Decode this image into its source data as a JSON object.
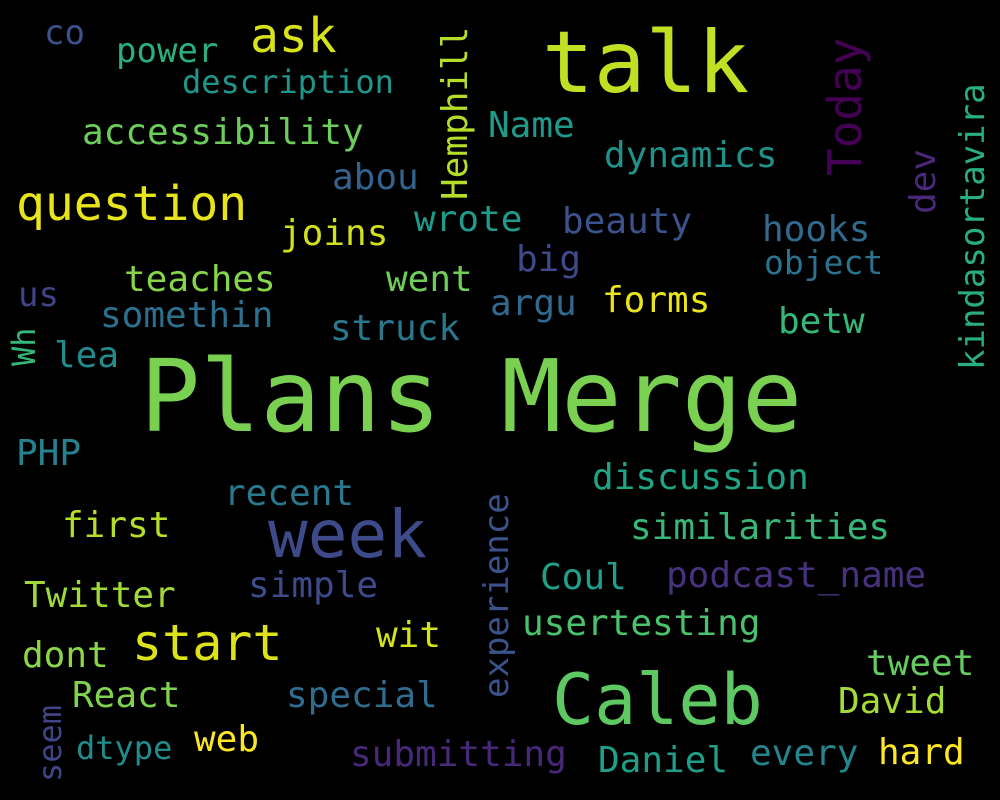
{
  "background_color": "#000000",
  "words": [
    {
      "text": "Plans Merge",
      "color": "#7ad151"
    },
    {
      "text": "talk",
      "color": "#c2df23"
    },
    {
      "text": "Caleb",
      "color": "#5ec962"
    },
    {
      "text": "week",
      "color": "#3e4a89"
    },
    {
      "text": "question",
      "color": "#e7e419"
    },
    {
      "text": "start",
      "color": "#dde318"
    },
    {
      "text": "ask",
      "color": "#d8e219"
    },
    {
      "text": "Today",
      "color": "#440154"
    },
    {
      "text": "power",
      "color": "#2ab07f"
    },
    {
      "text": "co",
      "color": "#3b528b"
    },
    {
      "text": "description",
      "color": "#1f968b"
    },
    {
      "text": "accessibility",
      "color": "#6ccd5a"
    },
    {
      "text": "Hemphill",
      "color": "#b5de2b"
    },
    {
      "text": "Name",
      "color": "#1f9a8a"
    },
    {
      "text": "dynamics",
      "color": "#21918c"
    },
    {
      "text": "abou",
      "color": "#33638d"
    },
    {
      "text": "joins",
      "color": "#d0e11c"
    },
    {
      "text": "wrote",
      "color": "#1e9b8a"
    },
    {
      "text": "beauty",
      "color": "#3b528b"
    },
    {
      "text": "hooks",
      "color": "#306a8e"
    },
    {
      "text": "object",
      "color": "#2c728e"
    },
    {
      "text": "dev",
      "color": "#482878"
    },
    {
      "text": "kindasortavira",
      "color": "#29af7f"
    },
    {
      "text": "big",
      "color": "#3e4989"
    },
    {
      "text": "teaches",
      "color": "#86d549"
    },
    {
      "text": "went",
      "color": "#6ece58"
    },
    {
      "text": "us",
      "color": "#414487"
    },
    {
      "text": "somethin",
      "color": "#2d708e"
    },
    {
      "text": "argu",
      "color": "#31688e"
    },
    {
      "text": "forms",
      "color": "#eae51a"
    },
    {
      "text": "struck",
      "color": "#2a788e"
    },
    {
      "text": "betw",
      "color": "#35b779"
    },
    {
      "text": "Wh",
      "color": "#35b779"
    },
    {
      "text": "lea",
      "color": "#228c8d"
    },
    {
      "text": "PHP",
      "color": "#26828e"
    },
    {
      "text": "discussion",
      "color": "#20a486"
    },
    {
      "text": "recent",
      "color": "#2a788e"
    },
    {
      "text": "experience",
      "color": "#3b528b"
    },
    {
      "text": "first",
      "color": "#b5de2b"
    },
    {
      "text": "similarities",
      "color": "#37b878"
    },
    {
      "text": "Twitter",
      "color": "#a0da39"
    },
    {
      "text": "simple",
      "color": "#3e4a89"
    },
    {
      "text": "Coul",
      "color": "#1fa088"
    },
    {
      "text": "podcast_name",
      "color": "#46327e"
    },
    {
      "text": "usertesting",
      "color": "#4ac16d"
    },
    {
      "text": "wit",
      "color": "#d2e21b"
    },
    {
      "text": "dont",
      "color": "#8bd646"
    },
    {
      "text": "React",
      "color": "#7fd34e"
    },
    {
      "text": "special",
      "color": "#2f6c8e"
    },
    {
      "text": "tweet",
      "color": "#63cb5f"
    },
    {
      "text": "David",
      "color": "#a5db36"
    },
    {
      "text": "seem",
      "color": "#414487"
    },
    {
      "text": "dtype",
      "color": "#228c8d"
    },
    {
      "text": "web",
      "color": "#fde725"
    },
    {
      "text": "submitting",
      "color": "#482878"
    },
    {
      "text": "Daniel",
      "color": "#1f9e89"
    },
    {
      "text": "every",
      "color": "#25858e"
    },
    {
      "text": "hard",
      "color": "#fde725"
    }
  ]
}
